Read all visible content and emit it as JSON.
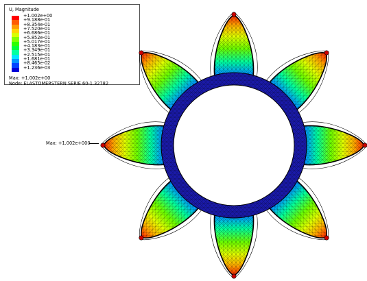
{
  "legend": {
    "title": "U, Magnitude",
    "entries": [
      {
        "value": "+1.002e+00",
        "color": "#ff0000"
      },
      {
        "value": "+9.188e-01",
        "color": "#ff5a00"
      },
      {
        "value": "+8.354e-01",
        "color": "#ff9a00"
      },
      {
        "value": "+7.520e-01",
        "color": "#ffd400"
      },
      {
        "value": "+6.686e-01",
        "color": "#d8ff00"
      },
      {
        "value": "+5.852e-01",
        "color": "#84ff00"
      },
      {
        "value": "+5.017e-01",
        "color": "#2cff00"
      },
      {
        "value": "+4.183e-01",
        "color": "#00ff3c"
      },
      {
        "value": "+3.349e-01",
        "color": "#00ffa0"
      },
      {
        "value": "+2.515e-01",
        "color": "#00e6ff"
      },
      {
        "value": "+1.681e-01",
        "color": "#0094ff"
      },
      {
        "value": "+8.465e-02",
        "color": "#0044ff"
      },
      {
        "value": "+1.236e-03",
        "color": "#0000d8"
      }
    ],
    "max_text": "Max: +1.002e+00",
    "node_text": "Node: ELASTOMERSTERN SERIE 60-1.32782"
  },
  "annotation": {
    "max_text": "Max: +1.002e+000"
  },
  "model": {
    "lobe_count": 8,
    "ring_color": "#1a1aa8",
    "mesh_color": "#000000"
  }
}
